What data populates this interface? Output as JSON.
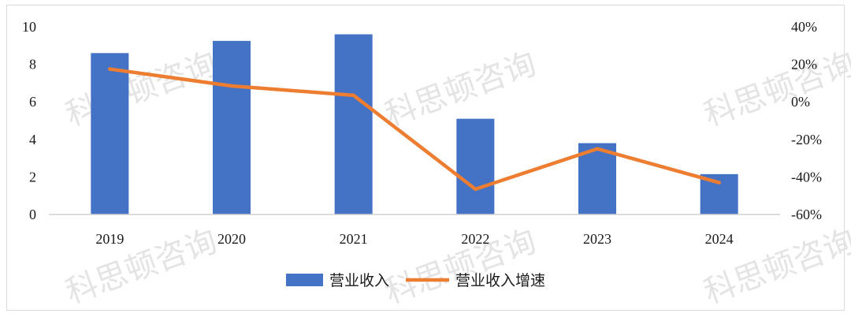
{
  "watermark": "科思顿咨询",
  "chart_data": {
    "type": "bar+line",
    "categories": [
      "2019",
      "2020",
      "2021",
      "2022",
      "2023",
      "2024"
    ],
    "series": [
      {
        "name": "营业收入",
        "type": "bar",
        "axis": "left",
        "color": "#4472c4",
        "values": [
          8.6,
          9.25,
          9.6,
          5.1,
          3.8,
          2.15
        ]
      },
      {
        "name": "营业收入增速",
        "type": "line",
        "axis": "right",
        "color": "#ed7d31",
        "values": [
          17.5,
          8.5,
          3.5,
          -46.5,
          -25,
          -43
        ]
      }
    ],
    "left_axis": {
      "min": 0,
      "max": 10,
      "ticks": [
        "0",
        "2",
        "4",
        "6",
        "8",
        "10"
      ]
    },
    "right_axis": {
      "min": -60,
      "max": 40,
      "ticks": [
        "-60%",
        "-40%",
        "-20%",
        "0%",
        "20%",
        "40%"
      ]
    },
    "grid": false,
    "legend": {
      "position": "bottom"
    }
  }
}
